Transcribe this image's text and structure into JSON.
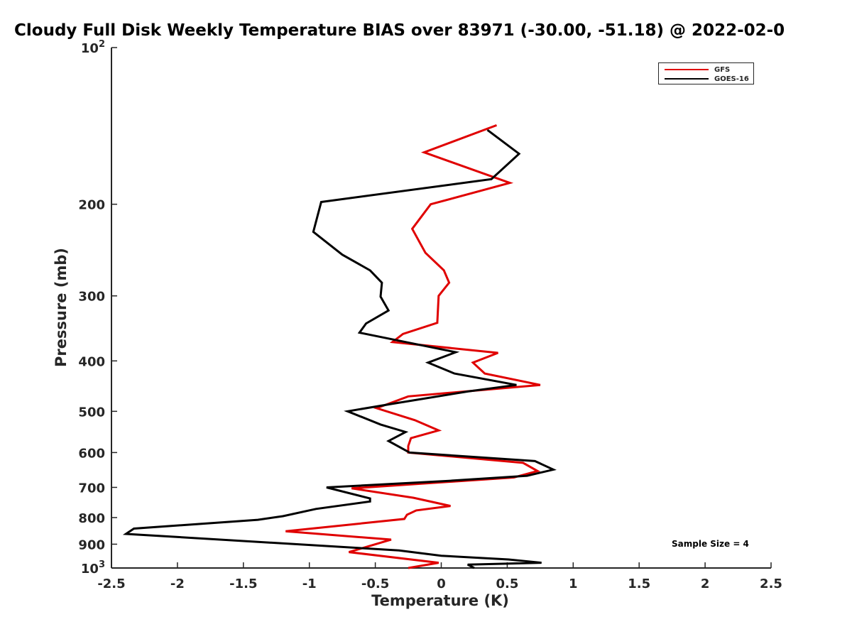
{
  "chart_data": {
    "type": "line",
    "title": "Cloudy Full Disk Weekly Temperature BIAS over 83971 (-30.00, -51.18) @ 2022-02-0",
    "xlabel": "Temperature (K)",
    "ylabel": "Pressure (mb)",
    "xlim": [
      -2.5,
      2.5
    ],
    "ylim": [
      100,
      1000
    ],
    "y_scale": "log",
    "y_reversed": true,
    "grid": false,
    "legend_position": "top-right",
    "x_ticks": [
      "-2.5",
      "-2",
      "-1.5",
      "-1",
      "-0.5",
      "0",
      "0.5",
      "1",
      "1.5",
      "2",
      "2.5"
    ],
    "y_ticks": [
      {
        "value": 100,
        "base": "10",
        "exp": "2"
      },
      {
        "value": 200,
        "label": "200"
      },
      {
        "value": 300,
        "label": "300"
      },
      {
        "value": 400,
        "label": "400"
      },
      {
        "value": 500,
        "label": "500"
      },
      {
        "value": 600,
        "label": "600"
      },
      {
        "value": 700,
        "label": "700"
      },
      {
        "value": 800,
        "label": "800"
      },
      {
        "value": 900,
        "label": "900"
      },
      {
        "value": 1000,
        "base": "10",
        "exp": "3"
      }
    ],
    "series": [
      {
        "name": "GFS",
        "color": "#e00000",
        "points": [
          [
            0.42,
            141
          ],
          [
            -0.13,
            159
          ],
          [
            0.52,
            182
          ],
          [
            -0.08,
            200
          ],
          [
            -0.22,
            223
          ],
          [
            -0.12,
            248
          ],
          [
            0.02,
            268
          ],
          [
            0.06,
            283
          ],
          [
            -0.02,
            300
          ],
          [
            -0.03,
            338
          ],
          [
            -0.29,
            355
          ],
          [
            -0.37,
            368
          ],
          [
            0.43,
            386
          ],
          [
            0.24,
            403
          ],
          [
            0.33,
            423
          ],
          [
            0.75,
            445
          ],
          [
            -0.25,
            468
          ],
          [
            -0.49,
            493
          ],
          [
            -0.2,
            520
          ],
          [
            -0.02,
            544
          ],
          [
            -0.23,
            563
          ],
          [
            -0.25,
            583
          ],
          [
            -0.25,
            600
          ],
          [
            0.62,
            628
          ],
          [
            0.73,
            651
          ],
          [
            0.55,
            670
          ],
          [
            -0.68,
            703
          ],
          [
            -0.21,
            733
          ],
          [
            0.07,
            760
          ],
          [
            -0.19,
            775
          ],
          [
            -0.26,
            790
          ],
          [
            -0.28,
            805
          ],
          [
            -1.18,
            850
          ],
          [
            -0.38,
            882
          ],
          [
            -0.7,
            932
          ],
          [
            -0.02,
            977
          ],
          [
            -0.25,
            1000
          ]
        ]
      },
      {
        "name": "GOES-16",
        "color": "#000000",
        "points": [
          [
            0.35,
            144
          ],
          [
            0.59,
            160
          ],
          [
            0.38,
            179
          ],
          [
            -0.91,
            198
          ],
          [
            -0.97,
            226
          ],
          [
            -0.75,
            250
          ],
          [
            -0.54,
            268
          ],
          [
            -0.45,
            283
          ],
          [
            -0.46,
            301
          ],
          [
            -0.4,
            320
          ],
          [
            -0.57,
            339
          ],
          [
            -0.62,
            353
          ],
          [
            0.11,
            385
          ],
          [
            -0.1,
            403
          ],
          [
            0.1,
            423
          ],
          [
            0.57,
            445
          ],
          [
            0.2,
            458
          ],
          [
            -0.38,
            484
          ],
          [
            -0.71,
            500
          ],
          [
            -0.46,
            530
          ],
          [
            -0.27,
            548
          ],
          [
            -0.4,
            570
          ],
          [
            -0.24,
            600
          ],
          [
            0.71,
            623
          ],
          [
            0.85,
            647
          ],
          [
            0.65,
            665
          ],
          [
            0.06,
            680
          ],
          [
            -0.87,
            700
          ],
          [
            -0.54,
            735
          ],
          [
            -0.54,
            745
          ],
          [
            -0.95,
            770
          ],
          [
            -1.2,
            795
          ],
          [
            -1.39,
            808
          ],
          [
            -2.33,
            840
          ],
          [
            -2.39,
            860
          ],
          [
            -0.32,
            925
          ],
          [
            0.0,
            947
          ],
          [
            0.51,
            963
          ],
          [
            0.76,
            977
          ],
          [
            0.2,
            985
          ],
          [
            0.25,
            1000
          ]
        ]
      }
    ],
    "annotations": [
      {
        "text": "Sample Size = 4"
      }
    ]
  }
}
